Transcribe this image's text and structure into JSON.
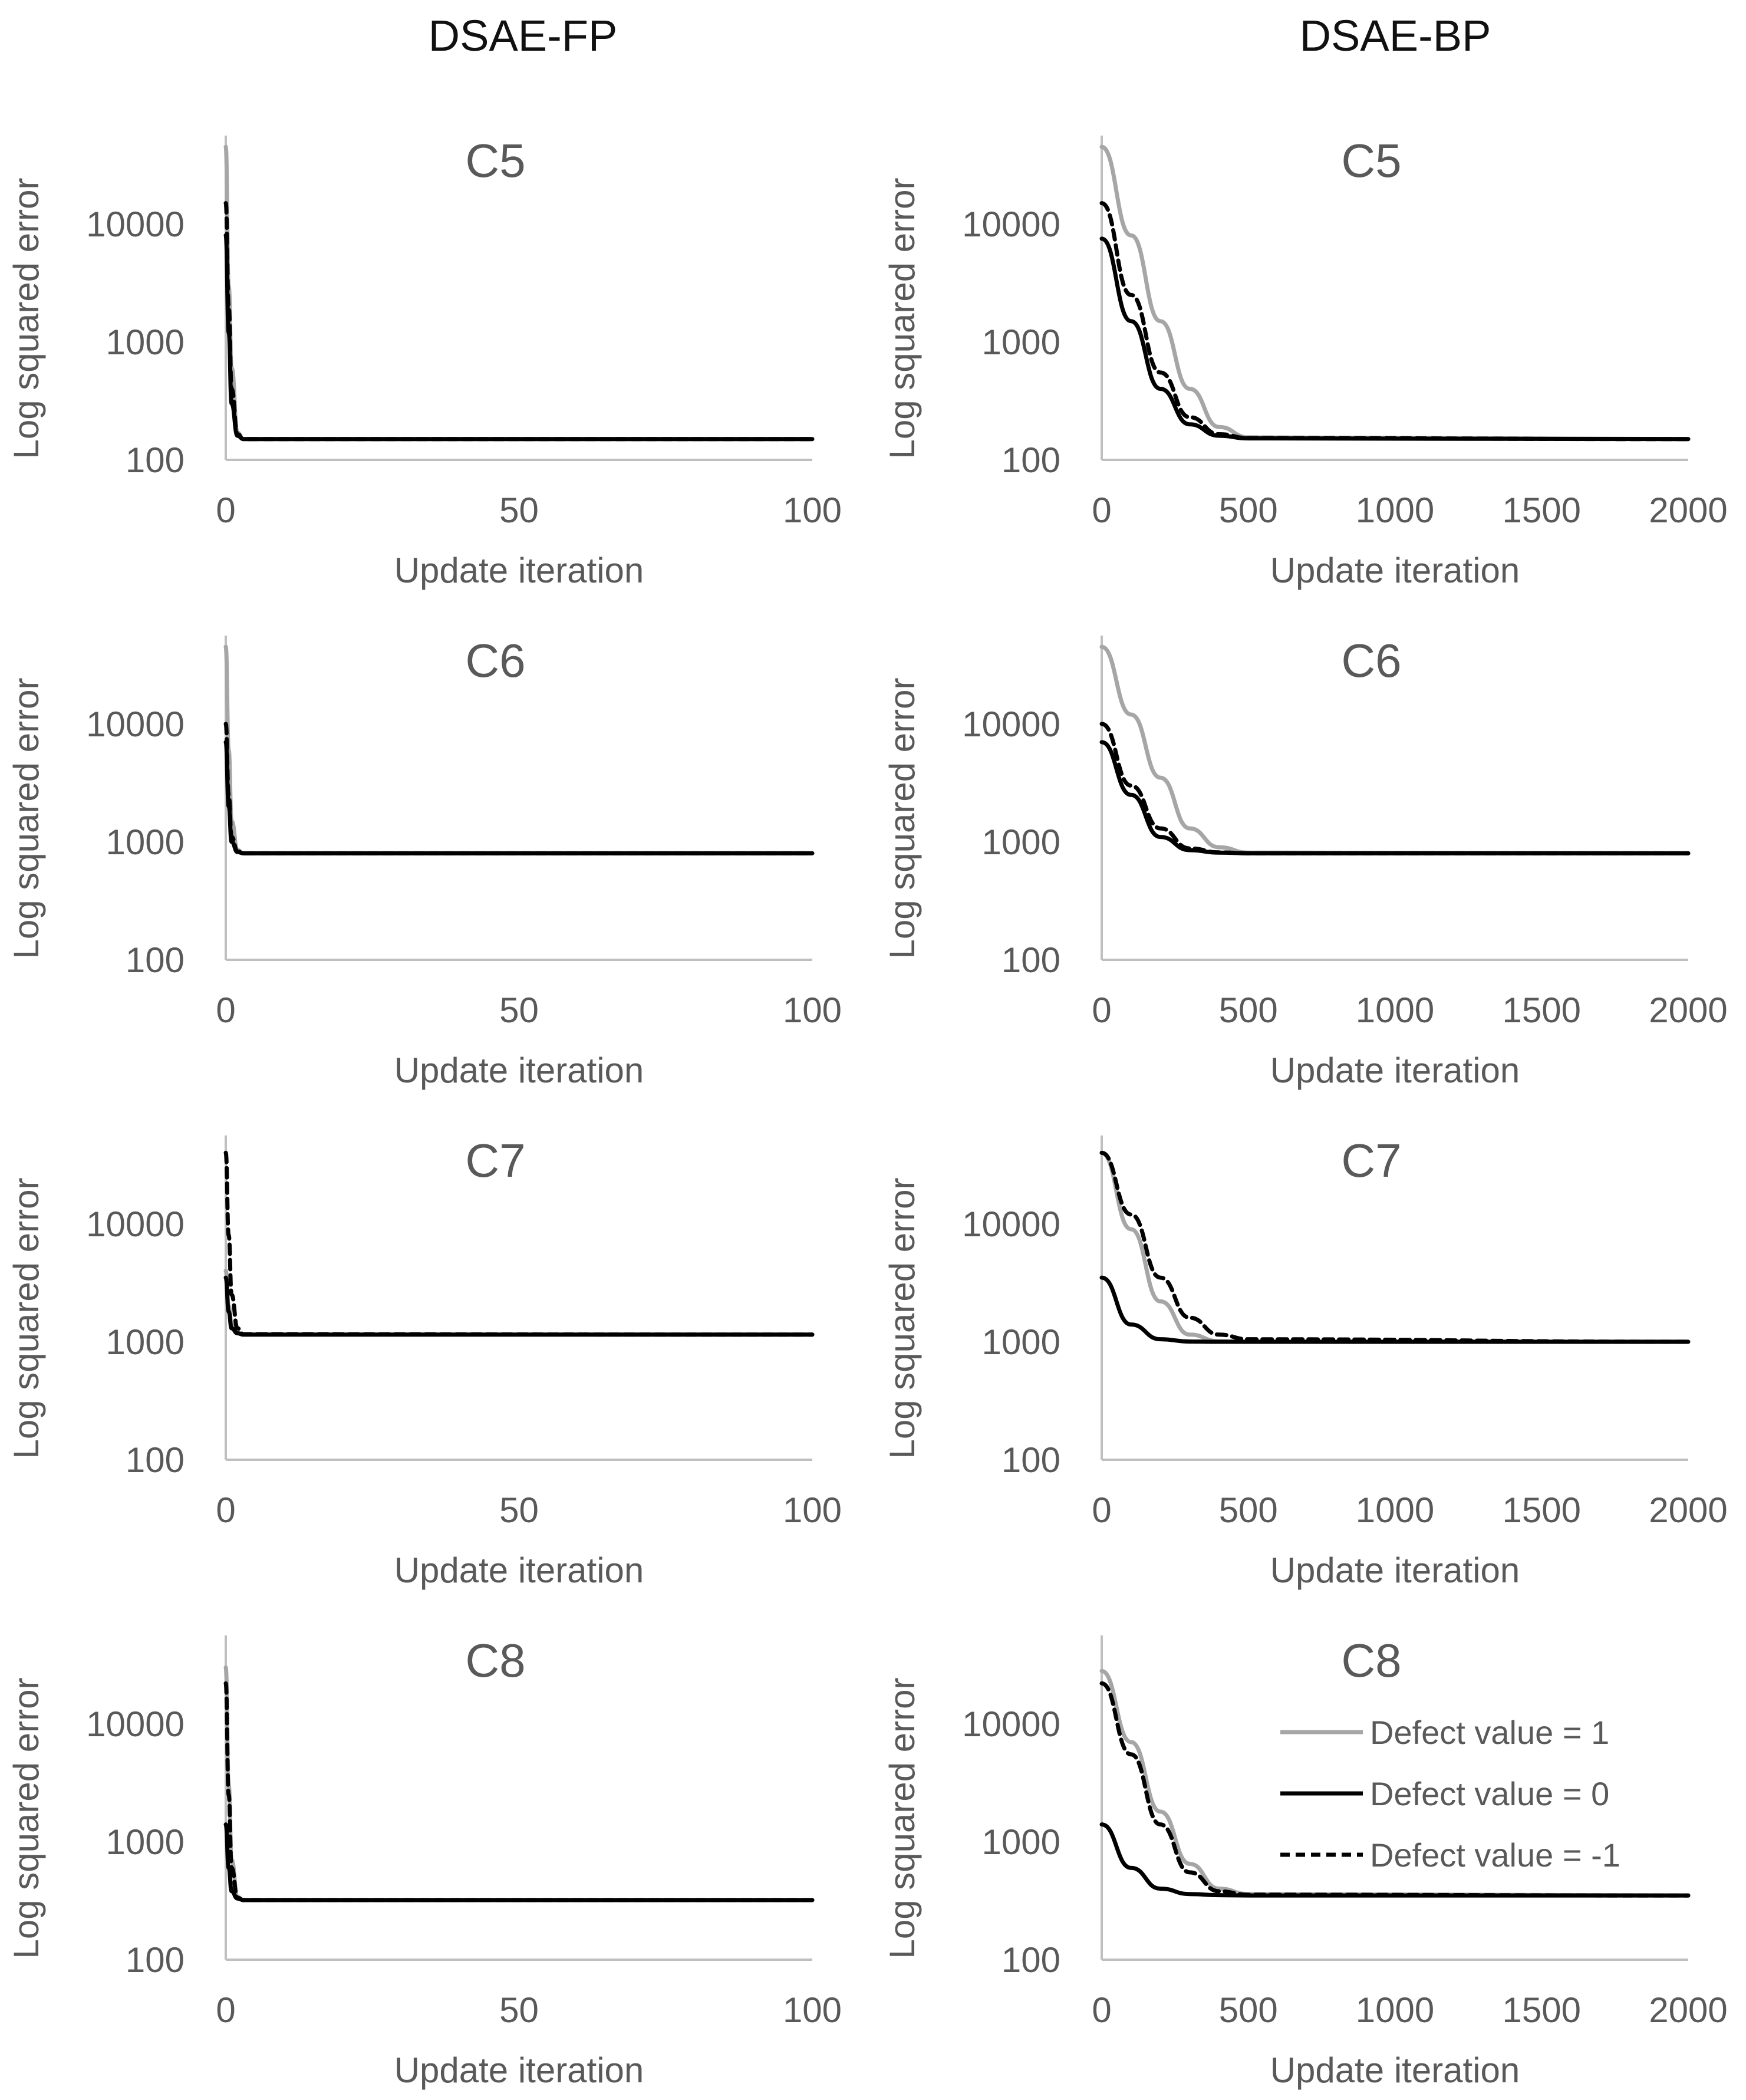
{
  "column_titles": [
    "DSAE-FP",
    "DSAE-BP"
  ],
  "colors": {
    "defect_1": "#a6a6a6",
    "defect_0": "#000000",
    "defect_m1": "#000000",
    "axis": "#bfbfbf",
    "text": "#595959"
  },
  "legend": [
    "Defect value = 1",
    "Defect value = 0",
    "Defect value = -1"
  ],
  "chart_data": [
    {
      "type": "line",
      "title": "C5",
      "column": "DSAE-FP",
      "xlabel": "Update iteration",
      "ylabel": "Log squared error",
      "yscale": "log",
      "ylim": [
        100,
        50000
      ],
      "xlim": [
        0,
        100
      ],
      "xticks": [
        0,
        50,
        100
      ],
      "yticks": [
        100,
        1000,
        10000
      ],
      "series": [
        {
          "name": "Defect value = 1",
          "x": [
            0,
            0.5,
            1,
            2,
            3,
            100
          ],
          "values": [
            45000,
            3000,
            600,
            170,
            150,
            150
          ]
        },
        {
          "name": "Defect value = 0",
          "x": [
            0,
            0.5,
            1,
            2,
            3,
            100
          ],
          "values": [
            8000,
            1200,
            300,
            160,
            150,
            150
          ]
        },
        {
          "name": "Defect value = -1",
          "x": [
            0,
            0.5,
            1,
            2,
            3,
            100
          ],
          "values": [
            15000,
            2000,
            400,
            165,
            150,
            150
          ]
        }
      ]
    },
    {
      "type": "line",
      "title": "C5",
      "column": "DSAE-BP",
      "xlabel": "Update iteration",
      "ylabel": "Log squared error",
      "yscale": "log",
      "ylim": [
        100,
        50000
      ],
      "xlim": [
        0,
        2000
      ],
      "xticks": [
        0,
        500,
        1000,
        1500,
        2000
      ],
      "yticks": [
        100,
        1000,
        10000
      ],
      "series": [
        {
          "name": "Defect value = 1",
          "x": [
            0,
            100,
            200,
            300,
            400,
            500,
            2000
          ],
          "values": [
            45000,
            8000,
            1500,
            400,
            190,
            155,
            150
          ]
        },
        {
          "name": "Defect value = 0",
          "x": [
            0,
            100,
            200,
            300,
            400,
            500,
            2000
          ],
          "values": [
            7500,
            1500,
            400,
            200,
            160,
            152,
            150
          ]
        },
        {
          "name": "Defect value = -1",
          "x": [
            0,
            100,
            200,
            300,
            400,
            500,
            2000
          ],
          "values": [
            15000,
            2500,
            550,
            230,
            165,
            153,
            150
          ]
        }
      ]
    },
    {
      "type": "line",
      "title": "C6",
      "column": "DSAE-FP",
      "xlabel": "Update iteration",
      "ylabel": "Log squared error",
      "yscale": "log",
      "ylim": [
        100,
        50000
      ],
      "xlim": [
        0,
        100
      ],
      "xticks": [
        0,
        50,
        100
      ],
      "yticks": [
        100,
        1000,
        10000
      ],
      "series": [
        {
          "name": "Defect value = 1",
          "x": [
            0,
            0.5,
            1,
            2,
            3,
            100
          ],
          "values": [
            45000,
            6000,
            1500,
            850,
            800,
            800
          ]
        },
        {
          "name": "Defect value = 0",
          "x": [
            0,
            0.5,
            1,
            2,
            3,
            100
          ],
          "values": [
            7000,
            2000,
            1000,
            820,
            800,
            800
          ]
        },
        {
          "name": "Defect value = -1",
          "x": [
            0,
            0.5,
            1,
            2,
            3,
            100
          ],
          "values": [
            10000,
            2500,
            1100,
            830,
            800,
            800
          ]
        }
      ]
    },
    {
      "type": "line",
      "title": "C6",
      "column": "DSAE-BP",
      "xlabel": "Update iteration",
      "ylabel": "Log squared error",
      "yscale": "log",
      "ylim": [
        100,
        50000
      ],
      "xlim": [
        0,
        2000
      ],
      "xticks": [
        0,
        500,
        1000,
        1500,
        2000
      ],
      "yticks": [
        100,
        1000,
        10000
      ],
      "series": [
        {
          "name": "Defect value = 1",
          "x": [
            0,
            100,
            200,
            300,
            400,
            500,
            2000
          ],
          "values": [
            45000,
            12000,
            3500,
            1300,
            900,
            810,
            800
          ]
        },
        {
          "name": "Defect value = 0",
          "x": [
            0,
            100,
            200,
            300,
            400,
            500,
            2000
          ],
          "values": [
            7000,
            2500,
            1100,
            850,
            810,
            800,
            800
          ]
        },
        {
          "name": "Defect value = -1",
          "x": [
            0,
            100,
            200,
            300,
            400,
            500,
            2000
          ],
          "values": [
            10000,
            3000,
            1300,
            880,
            815,
            800,
            800
          ]
        }
      ]
    },
    {
      "type": "line",
      "title": "C7",
      "column": "DSAE-FP",
      "xlabel": "Update iteration",
      "ylabel": "Log squared error",
      "yscale": "log",
      "ylim": [
        100,
        50000
      ],
      "xlim": [
        0,
        100
      ],
      "xticks": [
        0,
        50,
        100
      ],
      "yticks": [
        100,
        1000,
        10000
      ],
      "series": [
        {
          "name": "Defect value = 1",
          "x": [
            0,
            0.5,
            1,
            2,
            3,
            100
          ],
          "values": [
            4000,
            2000,
            1400,
            1200,
            1150,
            1150
          ]
        },
        {
          "name": "Defect value = 0",
          "x": [
            0,
            0.5,
            1,
            2,
            3,
            100
          ],
          "values": [
            3500,
            1800,
            1300,
            1180,
            1150,
            1150
          ]
        },
        {
          "name": "Defect value = -1",
          "x": [
            0,
            0.5,
            1,
            2,
            3,
            100
          ],
          "values": [
            40000,
            8000,
            2500,
            1300,
            1160,
            1150
          ]
        }
      ]
    },
    {
      "type": "line",
      "title": "C7",
      "column": "DSAE-BP",
      "xlabel": "Update iteration",
      "ylabel": "Log squared error",
      "yscale": "log",
      "ylim": [
        100,
        50000
      ],
      "xlim": [
        0,
        2000
      ],
      "xticks": [
        0,
        500,
        1000,
        1500,
        2000
      ],
      "yticks": [
        100,
        1000,
        10000
      ],
      "series": [
        {
          "name": "Defect value = 1",
          "x": [
            0,
            100,
            200,
            300,
            400,
            500,
            2000
          ],
          "values": [
            40000,
            9000,
            2200,
            1150,
            1010,
            1000,
            1000
          ]
        },
        {
          "name": "Defect value = 0",
          "x": [
            0,
            100,
            200,
            300,
            400,
            500,
            2000
          ],
          "values": [
            3500,
            1400,
            1050,
            1005,
            1000,
            1000,
            1000
          ]
        },
        {
          "name": "Defect value = -1",
          "x": [
            0,
            100,
            200,
            300,
            400,
            500,
            2000
          ],
          "values": [
            40000,
            12000,
            3500,
            1600,
            1150,
            1050,
            1000
          ]
        }
      ]
    },
    {
      "type": "line",
      "title": "C8",
      "column": "DSAE-FP",
      "xlabel": "Update iteration",
      "ylabel": "Log squared error",
      "yscale": "log",
      "ylim": [
        100,
        50000
      ],
      "xlim": [
        0,
        100
      ],
      "xticks": [
        0,
        50,
        100
      ],
      "yticks": [
        100,
        1000,
        10000
      ],
      "series": [
        {
          "name": "Defect value = 1",
          "x": [
            0,
            0.5,
            1,
            2,
            3,
            100
          ],
          "values": [
            30000,
            3000,
            700,
            340,
            320,
            320
          ]
        },
        {
          "name": "Defect value = 0",
          "x": [
            0,
            0.5,
            1,
            2,
            3,
            100
          ],
          "values": [
            1400,
            600,
            380,
            330,
            320,
            320
          ]
        },
        {
          "name": "Defect value = -1",
          "x": [
            0,
            0.5,
            1,
            2,
            3,
            100
          ],
          "values": [
            22000,
            2500,
            600,
            335,
            320,
            320
          ]
        }
      ]
    },
    {
      "type": "line",
      "title": "C8",
      "column": "DSAE-BP",
      "xlabel": "Update iteration",
      "ylabel": "Log squared error",
      "yscale": "log",
      "ylim": [
        100,
        50000
      ],
      "xlim": [
        0,
        2000
      ],
      "xticks": [
        0,
        500,
        1000,
        1500,
        2000
      ],
      "yticks": [
        100,
        1000,
        10000
      ],
      "series": [
        {
          "name": "Defect value = 1",
          "x": [
            0,
            100,
            200,
            300,
            400,
            500,
            2000
          ],
          "values": [
            28000,
            7000,
            1800,
            650,
            400,
            360,
            350
          ]
        },
        {
          "name": "Defect value = 0",
          "x": [
            0,
            100,
            200,
            300,
            400,
            500,
            2000
          ],
          "values": [
            1400,
            600,
            400,
            360,
            352,
            350,
            350
          ]
        },
        {
          "name": "Defect value = -1",
          "x": [
            0,
            100,
            200,
            300,
            400,
            500,
            2000
          ],
          "values": [
            22000,
            5500,
            1400,
            550,
            380,
            355,
            350
          ]
        }
      ]
    }
  ]
}
